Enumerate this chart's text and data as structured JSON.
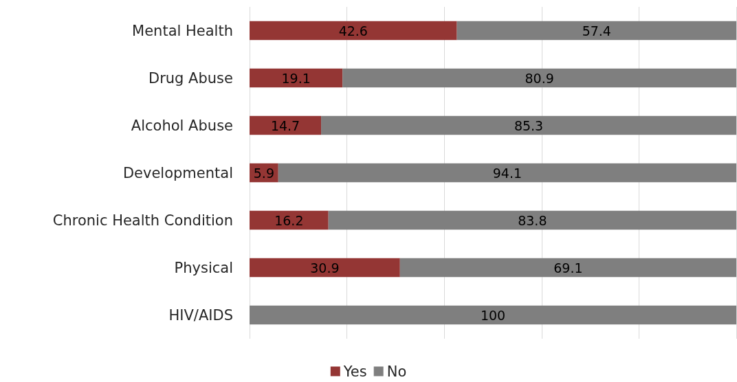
{
  "chart_data": {
    "type": "bar",
    "orientation": "horizontal",
    "stacked": true,
    "categories": [
      "Mental Health",
      "Drug Abuse",
      "Alcohol Abuse",
      "Developmental",
      "Chronic Health Condition",
      "Physical",
      "HIV/AIDS"
    ],
    "series": [
      {
        "name": "Yes",
        "color": "#943634",
        "values": [
          42.6,
          19.1,
          14.7,
          5.9,
          16.2,
          30.9,
          null
        ]
      },
      {
        "name": "No",
        "color": "#7f7f7f",
        "values": [
          57.4,
          80.9,
          85.3,
          94.1,
          83.8,
          69.1,
          100
        ]
      }
    ],
    "xlim": [
      0,
      100
    ],
    "xticks": [
      {
        "value": 0,
        "label": null
      },
      {
        "value": 20,
        "label": null
      },
      {
        "value": 40,
        "label": null
      },
      {
        "value": 60,
        "label": null
      },
      {
        "value": 80,
        "label": null
      },
      {
        "value": 100,
        "label": null
      }
    ],
    "grid": "x",
    "legend": "bottom",
    "data_labels": true,
    "tick_labels": "y"
  }
}
